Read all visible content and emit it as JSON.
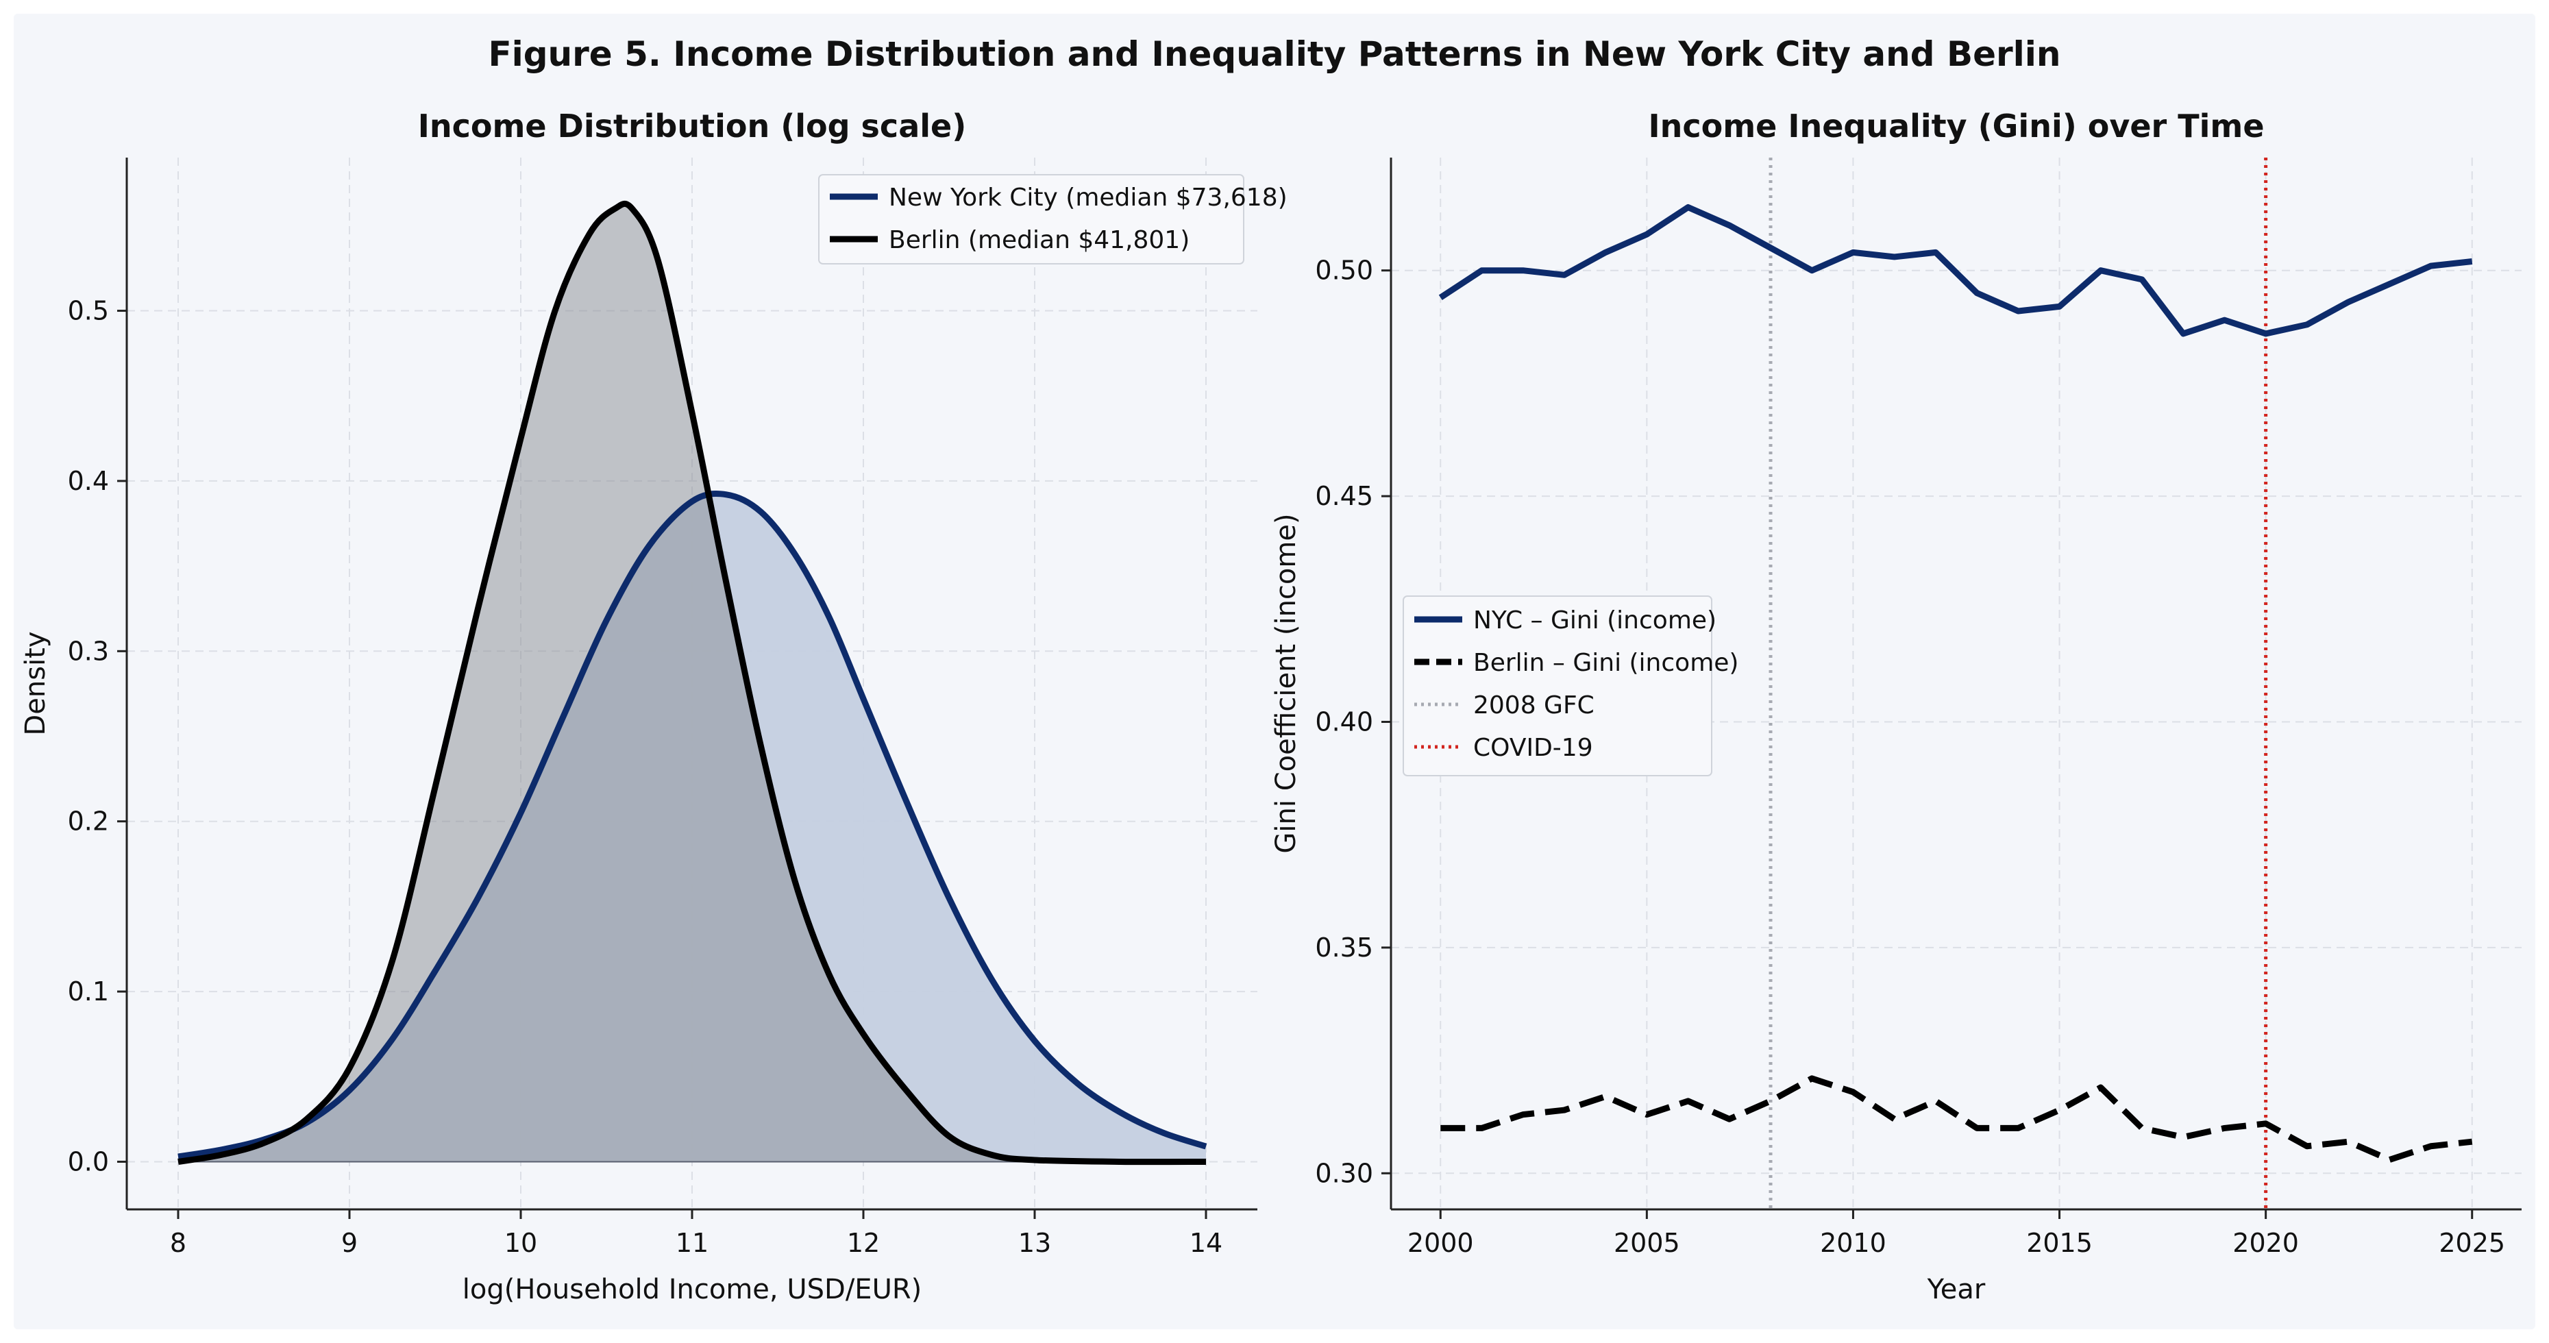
{
  "figure": {
    "title": "Figure 5. Income Distribution and Inequality Patterns in New York City and Berlin",
    "background": "#f4f6fa",
    "page_background": "#ffffff"
  },
  "chart_data": [
    {
      "type": "area",
      "title": "Income Distribution (log scale)",
      "xlabel": "log(Household Income, USD/EUR)",
      "ylabel": "Density",
      "xlim": [
        7.7,
        14.3
      ],
      "ylim": [
        -0.028,
        0.59
      ],
      "xticks": [
        8,
        9,
        10,
        11,
        12,
        13,
        14
      ],
      "yticks": [
        0.0,
        0.1,
        0.2,
        0.3,
        0.4,
        0.5
      ],
      "grid": true,
      "legend_position": "top-right",
      "series": [
        {
          "name": "New York City (median $73,618)",
          "color": "#0d2b6b",
          "fill": "#c4cfe0",
          "x": [
            8.0,
            8.25,
            8.5,
            8.75,
            9.0,
            9.25,
            9.5,
            9.75,
            10.0,
            10.25,
            10.5,
            10.75,
            11.0,
            11.2,
            11.4,
            11.6,
            11.8,
            12.0,
            12.25,
            12.5,
            12.75,
            13.0,
            13.25,
            13.5,
            13.75,
            14.0
          ],
          "y": [
            0.003,
            0.007,
            0.013,
            0.023,
            0.042,
            0.072,
            0.112,
            0.155,
            0.205,
            0.262,
            0.318,
            0.362,
            0.388,
            0.392,
            0.382,
            0.357,
            0.32,
            0.272,
            0.212,
            0.155,
            0.107,
            0.071,
            0.046,
            0.029,
            0.017,
            0.009
          ]
        },
        {
          "name": "Berlin (median $41,801)",
          "color": "#000000",
          "fill": "#8a8d94",
          "x": [
            8.0,
            8.25,
            8.5,
            8.75,
            9.0,
            9.25,
            9.5,
            9.75,
            10.0,
            10.2,
            10.4,
            10.55,
            10.65,
            10.8,
            11.0,
            11.2,
            11.4,
            11.6,
            11.8,
            12.0,
            12.25,
            12.5,
            12.75,
            13.0,
            13.5,
            14.0
          ],
          "y": [
            0.0,
            0.004,
            0.011,
            0.025,
            0.055,
            0.118,
            0.22,
            0.325,
            0.425,
            0.5,
            0.545,
            0.56,
            0.56,
            0.53,
            0.44,
            0.34,
            0.245,
            0.165,
            0.11,
            0.075,
            0.042,
            0.015,
            0.004,
            0.001,
            0.0,
            0.0
          ]
        }
      ]
    },
    {
      "type": "line",
      "title": "Income Inequality (Gini) over Time",
      "xlabel": "Year",
      "ylabel": "Gini Coefficient (income)",
      "xlim": [
        1998.8,
        2026.2
      ],
      "ylim": [
        0.292,
        0.525
      ],
      "xticks": [
        2000,
        2005,
        2010,
        2015,
        2020,
        2025
      ],
      "yticks": [
        0.3,
        0.35,
        0.4,
        0.45,
        0.5
      ],
      "ytick_labels": [
        "0.30",
        "0.35",
        "0.40",
        "0.45",
        "0.50"
      ],
      "grid": true,
      "legend_position": "center-left",
      "series": [
        {
          "name": "NYC – Gini (income)",
          "color": "#0d2b6b",
          "style": "solid",
          "x": [
            2000,
            2001,
            2002,
            2003,
            2004,
            2005,
            2006,
            2007,
            2008,
            2009,
            2010,
            2011,
            2012,
            2013,
            2014,
            2015,
            2016,
            2017,
            2018,
            2019,
            2020,
            2021,
            2022,
            2023,
            2024,
            2025
          ],
          "y": [
            0.494,
            0.5,
            0.5,
            0.499,
            0.504,
            0.508,
            0.514,
            0.51,
            0.505,
            0.5,
            0.504,
            0.503,
            0.504,
            0.495,
            0.491,
            0.492,
            0.5,
            0.498,
            0.486,
            0.489,
            0.486,
            0.488,
            0.493,
            0.497,
            0.501,
            0.502
          ]
        },
        {
          "name": "Berlin – Gini (income)",
          "color": "#000000",
          "style": "dashed",
          "x": [
            2000,
            2001,
            2002,
            2003,
            2004,
            2005,
            2006,
            2007,
            2008,
            2009,
            2010,
            2011,
            2012,
            2013,
            2014,
            2015,
            2016,
            2017,
            2018,
            2019,
            2020,
            2021,
            2022,
            2023,
            2024,
            2025
          ],
          "y": [
            0.31,
            0.31,
            0.313,
            0.314,
            0.317,
            0.313,
            0.316,
            0.312,
            0.316,
            0.321,
            0.318,
            0.312,
            0.316,
            0.31,
            0.31,
            0.314,
            0.319,
            0.31,
            0.308,
            0.31,
            0.311,
            0.306,
            0.307,
            0.303,
            0.306,
            0.307
          ]
        }
      ],
      "vlines": [
        {
          "name": "2008 GFC",
          "x": 2008,
          "color": "#a7aab2",
          "style": "dotted"
        },
        {
          "name": "COVID-19",
          "x": 2020,
          "color": "#d2251f",
          "style": "dotted"
        }
      ]
    }
  ]
}
